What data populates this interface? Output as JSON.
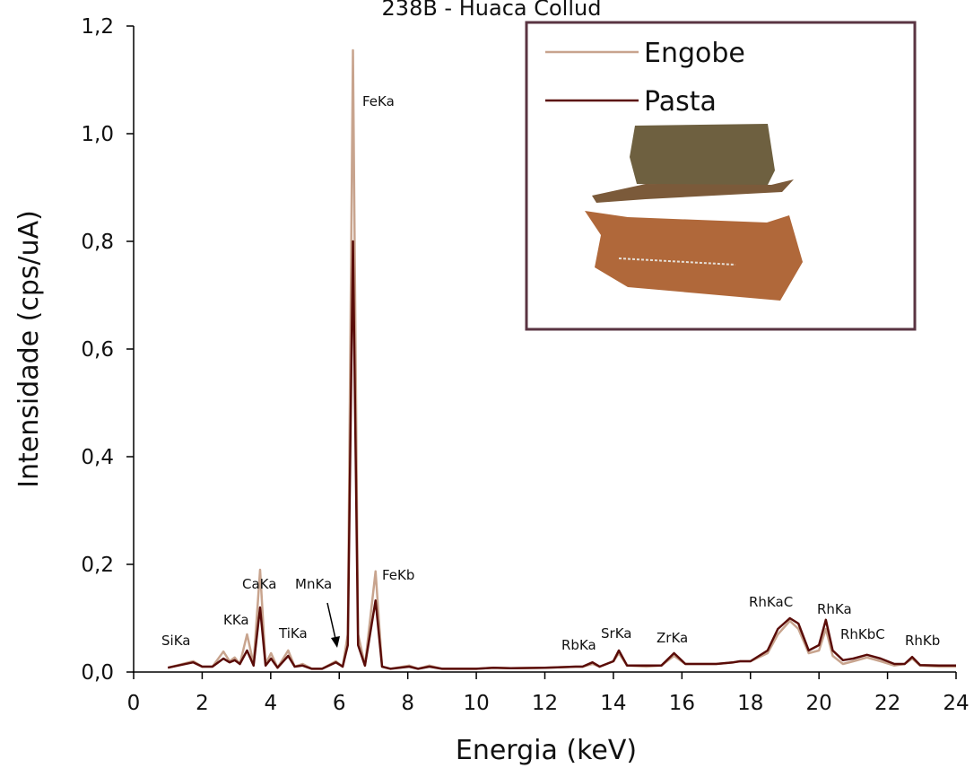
{
  "chart_data": {
    "type": "line",
    "title": "238B - Huaca Collud",
    "xlabel": "Energia (keV)",
    "ylabel": "Intensidade (cps/uA)",
    "xlim": [
      0,
      24
    ],
    "xticks": [
      0,
      2,
      4,
      6,
      8,
      10,
      12,
      14,
      16,
      18,
      20,
      22,
      24
    ],
    "ylim": [
      0,
      1.2
    ],
    "yticks": [
      {
        "value": 0,
        "label": "0,0"
      },
      {
        "value": 0.2,
        "label": "0,2"
      },
      {
        "value": 0.4,
        "label": "0,4"
      },
      {
        "value": 0.6,
        "label": "0,6"
      },
      {
        "value": 0.8,
        "label": "0,8"
      },
      {
        "value": 1.0,
        "label": "1,0"
      },
      {
        "value": 1.2,
        "label": "1,2"
      }
    ],
    "x": [
      1.0,
      1.74,
      2.0,
      2.3,
      2.62,
      2.8,
      2.95,
      3.1,
      3.31,
      3.5,
      3.69,
      3.85,
      4.01,
      4.2,
      4.51,
      4.7,
      4.93,
      5.2,
      5.5,
      5.9,
      6.1,
      6.25,
      6.4,
      6.55,
      6.75,
      7.06,
      7.25,
      7.5,
      8.04,
      8.3,
      8.63,
      9.0,
      10.0,
      10.5,
      11.0,
      12.0,
      12.9,
      13.1,
      13.39,
      13.6,
      14.0,
      14.16,
      14.4,
      14.96,
      15.4,
      15.77,
      16.1,
      17.0,
      17.5,
      17.7,
      18.0,
      18.5,
      18.8,
      19.15,
      19.4,
      19.7,
      20.0,
      20.2,
      20.4,
      20.7,
      21.0,
      21.4,
      21.8,
      22.2,
      22.5,
      22.72,
      22.95,
      23.5,
      24.0
    ],
    "series": [
      {
        "name": "Engobe",
        "color": "#c8a48e",
        "values": [
          0.008,
          0.02,
          0.01,
          0.01,
          0.038,
          0.02,
          0.027,
          0.015,
          0.07,
          0.015,
          0.19,
          0.015,
          0.035,
          0.008,
          0.04,
          0.01,
          0.015,
          0.006,
          0.006,
          0.02,
          0.01,
          0.07,
          1.155,
          0.07,
          0.012,
          0.187,
          0.01,
          0.006,
          0.012,
          0.006,
          0.012,
          0.006,
          0.006,
          0.008,
          0.007,
          0.008,
          0.01,
          0.01,
          0.015,
          0.01,
          0.02,
          0.035,
          0.012,
          0.01,
          0.012,
          0.03,
          0.015,
          0.015,
          0.018,
          0.02,
          0.02,
          0.035,
          0.07,
          0.095,
          0.08,
          0.035,
          0.04,
          0.08,
          0.03,
          0.015,
          0.02,
          0.027,
          0.02,
          0.012,
          0.015,
          0.025,
          0.012,
          0.01,
          0.01
        ]
      },
      {
        "name": "Pasta",
        "color": "#5a0c08",
        "values": [
          0.008,
          0.018,
          0.01,
          0.01,
          0.025,
          0.018,
          0.022,
          0.015,
          0.04,
          0.012,
          0.12,
          0.012,
          0.025,
          0.008,
          0.03,
          0.01,
          0.012,
          0.006,
          0.006,
          0.018,
          0.01,
          0.05,
          0.8,
          0.05,
          0.012,
          0.133,
          0.01,
          0.006,
          0.01,
          0.006,
          0.01,
          0.006,
          0.006,
          0.008,
          0.007,
          0.008,
          0.01,
          0.01,
          0.018,
          0.01,
          0.02,
          0.04,
          0.012,
          0.012,
          0.012,
          0.035,
          0.015,
          0.015,
          0.018,
          0.02,
          0.02,
          0.04,
          0.08,
          0.1,
          0.09,
          0.04,
          0.05,
          0.097,
          0.04,
          0.022,
          0.025,
          0.032,
          0.025,
          0.015,
          0.015,
          0.028,
          0.013,
          0.012,
          0.012
        ]
      }
    ],
    "annotations": [
      "SiKa",
      "KKa",
      "CaKa",
      "TiKa",
      "MnKa",
      "FeKa",
      "FeKb",
      "RbKa",
      "SrKa",
      "ZrKa",
      "RhKaC",
      "RhKa",
      "RhKbC",
      "RhKb"
    ]
  }
}
